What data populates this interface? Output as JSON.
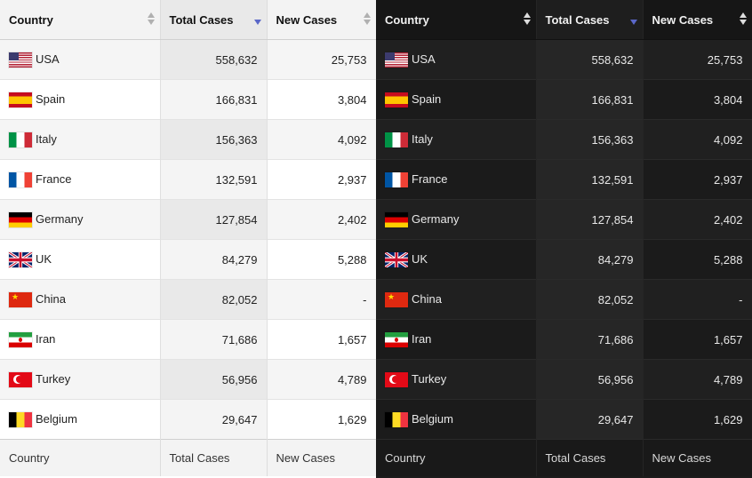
{
  "columns": {
    "country": "Country",
    "total_cases": "Total Cases",
    "new_cases": "New Cases"
  },
  "footer": {
    "country": "Country",
    "total_cases": "Total Cases",
    "new_cases": "New Cases"
  },
  "sort": {
    "column": "total_cases",
    "direction": "descending"
  },
  "sort_accent_color": "#5a67c8",
  "rows": [
    {
      "country": "USA",
      "flag": "us-flag-icon",
      "total_cases": "558,632",
      "new_cases": "25,753"
    },
    {
      "country": "Spain",
      "flag": "spain-flag-icon",
      "total_cases": "166,831",
      "new_cases": "3,804"
    },
    {
      "country": "Italy",
      "flag": "italy-flag-icon",
      "total_cases": "156,363",
      "new_cases": "4,092"
    },
    {
      "country": "France",
      "flag": "france-flag-icon",
      "total_cases": "132,591",
      "new_cases": "2,937"
    },
    {
      "country": "Germany",
      "flag": "germany-flag-icon",
      "total_cases": "127,854",
      "new_cases": "2,402"
    },
    {
      "country": "UK",
      "flag": "uk-flag-icon",
      "total_cases": "84,279",
      "new_cases": "5,288"
    },
    {
      "country": "China",
      "flag": "china-flag-icon",
      "total_cases": "82,052",
      "new_cases": "-"
    },
    {
      "country": "Iran",
      "flag": "iran-flag-icon",
      "total_cases": "71,686",
      "new_cases": "1,657"
    },
    {
      "country": "Turkey",
      "flag": "turkey-flag-icon",
      "total_cases": "56,956",
      "new_cases": "4,789"
    },
    {
      "country": "Belgium",
      "flag": "belgium-flag-icon",
      "total_cases": "29,647",
      "new_cases": "1,629"
    }
  ]
}
